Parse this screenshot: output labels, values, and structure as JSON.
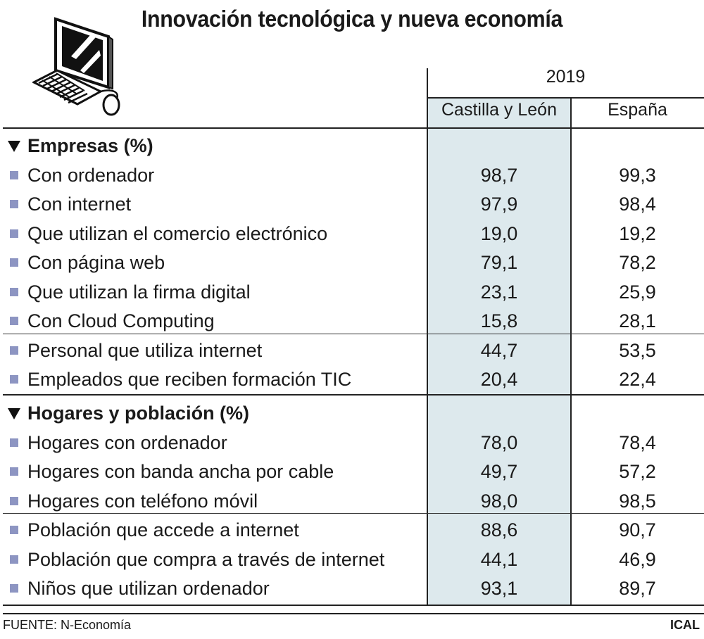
{
  "title": "Innovación tecnológica y nueva economía",
  "icon": "computer-icon",
  "colors": {
    "highlight_column": "#dde9ed",
    "bullet": "#8d95c2",
    "text": "#1a1a1a"
  },
  "header": {
    "year": "2019",
    "columns": [
      "Castilla y León",
      "España"
    ]
  },
  "chart_data": {
    "type": "table",
    "title": "Innovación tecnológica y nueva economía",
    "columns": [
      "Castilla y León",
      "España"
    ],
    "year": "2019",
    "sections": [
      {
        "name": "Empresas (%)",
        "rows": [
          {
            "label": "Con ordenador",
            "values": [
              "98,7",
              "99,3"
            ]
          },
          {
            "label": "Con internet",
            "values": [
              "97,9",
              "98,4"
            ]
          },
          {
            "label": "Que utilizan el comercio electrónico",
            "values": [
              "19,0",
              "19,2"
            ]
          },
          {
            "label": "Con página web",
            "values": [
              "79,1",
              "78,2"
            ]
          },
          {
            "label": "Que utilizan la firma digital",
            "values": [
              "23,1",
              "25,9"
            ]
          },
          {
            "label": "Con Cloud Computing",
            "values": [
              "15,8",
              "28,1"
            ]
          },
          {
            "label": "Personal que utiliza internet",
            "values": [
              "44,7",
              "53,5"
            ]
          },
          {
            "label": "Empleados que reciben formación TIC",
            "values": [
              "20,4",
              "22,4"
            ]
          }
        ]
      },
      {
        "name": "Hogares y población (%)",
        "rows": [
          {
            "label": "Hogares con ordenador",
            "values": [
              "78,0",
              "78,4"
            ]
          },
          {
            "label": "Hogares con banda ancha por cable",
            "values": [
              "49,7",
              "57,2"
            ]
          },
          {
            "label": "Hogares con teléfono móvil",
            "values": [
              "98,0",
              "98,5"
            ]
          },
          {
            "label": "Población que accede a internet",
            "values": [
              "88,6",
              "90,7"
            ]
          },
          {
            "label": "Población que compra a través de internet",
            "values": [
              "44,1",
              "46,9"
            ]
          },
          {
            "label": "Niños que utilizan ordenador",
            "values": [
              "93,1",
              "89,7"
            ]
          }
        ]
      }
    ]
  },
  "footer": {
    "source": "FUENTE: N-Economía",
    "credit": "ICAL"
  }
}
